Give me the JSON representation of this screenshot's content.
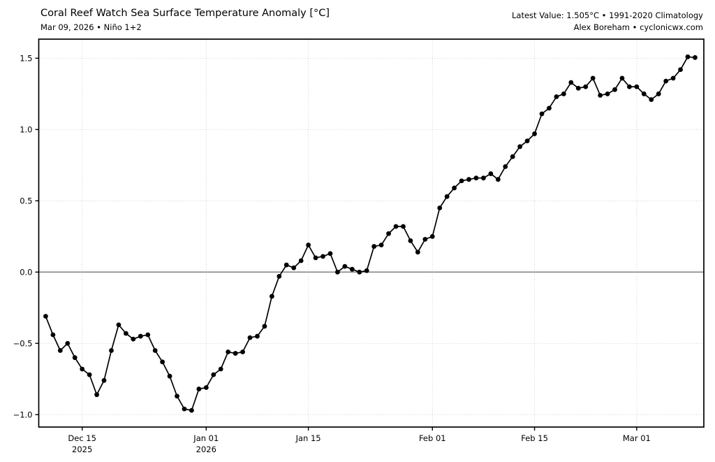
{
  "header": {
    "title": "Coral Reef Watch Sea Surface Temperature Anomaly [°C]",
    "subtitle": "Mar 09, 2026 • Niño 1+2",
    "latest_line": "Latest Value: 1.505°C • 1991-2020 Climatology",
    "credit_line": "Alex Boreham • cyclonicwx.com"
  },
  "colors": {
    "line": "#000000",
    "marker": "#000000",
    "grid": "#c9c9c9",
    "zero_line": "#808080",
    "spine": "#000000",
    "text": "#000000",
    "background": "#ffffff"
  },
  "chart_data": {
    "type": "line",
    "title": "Coral Reef Watch Sea Surface Temperature Anomaly [°C]",
    "subtitle": "Mar 09, 2026 • Niño 1+2",
    "ylabel": "",
    "xlabel": "",
    "marker": "circle",
    "grid": true,
    "zero_line": true,
    "ylim": [
      -1.087,
      1.634
    ],
    "xlim_days": [
      -0.95,
      90.2
    ],
    "yticks": [
      1.5,
      1.0,
      0.5,
      0.0,
      -0.5,
      -1.0
    ],
    "xticks": [
      {
        "day": 5,
        "label": "Dec 15",
        "label2": "2025"
      },
      {
        "day": 22,
        "label": "Jan 01",
        "label2": "2026"
      },
      {
        "day": 36,
        "label": "Jan 15",
        "label2": ""
      },
      {
        "day": 53,
        "label": "Feb 01",
        "label2": ""
      },
      {
        "day": 67,
        "label": "Feb 15",
        "label2": ""
      },
      {
        "day": 81,
        "label": "Mar 01",
        "label2": ""
      }
    ],
    "x": [
      "2025-12-10",
      "2025-12-11",
      "2025-12-12",
      "2025-12-13",
      "2025-12-14",
      "2025-12-15",
      "2025-12-16",
      "2025-12-17",
      "2025-12-18",
      "2025-12-19",
      "2025-12-20",
      "2025-12-21",
      "2025-12-22",
      "2025-12-23",
      "2025-12-24",
      "2025-12-25",
      "2025-12-26",
      "2025-12-27",
      "2025-12-28",
      "2025-12-29",
      "2025-12-30",
      "2025-12-31",
      "2026-01-01",
      "2026-01-02",
      "2026-01-03",
      "2026-01-04",
      "2026-01-05",
      "2026-01-06",
      "2026-01-07",
      "2026-01-08",
      "2026-01-09",
      "2026-01-10",
      "2026-01-11",
      "2026-01-12",
      "2026-01-13",
      "2026-01-14",
      "2026-01-15",
      "2026-01-16",
      "2026-01-17",
      "2026-01-18",
      "2026-01-19",
      "2026-01-20",
      "2026-01-21",
      "2026-01-22",
      "2026-01-23",
      "2026-01-24",
      "2026-01-25",
      "2026-01-26",
      "2026-01-27",
      "2026-01-28",
      "2026-01-29",
      "2026-01-30",
      "2026-01-31",
      "2026-02-01",
      "2026-02-02",
      "2026-02-03",
      "2026-02-04",
      "2026-02-05",
      "2026-02-06",
      "2026-02-07",
      "2026-02-08",
      "2026-02-09",
      "2026-02-10",
      "2026-02-11",
      "2026-02-12",
      "2026-02-13",
      "2026-02-14",
      "2026-02-15",
      "2026-02-16",
      "2026-02-17",
      "2026-02-18",
      "2026-02-19",
      "2026-02-20",
      "2026-02-21",
      "2026-02-22",
      "2026-02-23",
      "2026-02-24",
      "2026-02-25",
      "2026-02-26",
      "2026-02-27",
      "2026-02-28",
      "2026-03-01",
      "2026-03-02",
      "2026-03-03",
      "2026-03-04",
      "2026-03-05",
      "2026-03-06",
      "2026-03-07",
      "2026-03-08",
      "2026-03-09"
    ],
    "values": [
      -0.31,
      -0.44,
      -0.55,
      -0.5,
      -0.6,
      -0.68,
      -0.72,
      -0.86,
      -0.76,
      -0.55,
      -0.37,
      -0.43,
      -0.47,
      -0.45,
      -0.44,
      -0.55,
      -0.63,
      -0.73,
      -0.87,
      -0.96,
      -0.97,
      -0.82,
      -0.81,
      -0.72,
      -0.68,
      -0.56,
      -0.57,
      -0.56,
      -0.46,
      -0.45,
      -0.38,
      -0.17,
      -0.03,
      0.05,
      0.03,
      0.08,
      0.19,
      0.1,
      0.11,
      0.13,
      0.0,
      0.04,
      0.02,
      0.0,
      0.01,
      0.18,
      0.19,
      0.27,
      0.32,
      0.32,
      0.22,
      0.14,
      0.23,
      0.25,
      0.45,
      0.53,
      0.59,
      0.64,
      0.65,
      0.66,
      0.66,
      0.69,
      0.65,
      0.74,
      0.81,
      0.88,
      0.92,
      0.97,
      1.11,
      1.15,
      1.23,
      1.25,
      1.33,
      1.29,
      1.3,
      1.36,
      1.24,
      1.25,
      1.28,
      1.36,
      1.3,
      1.3,
      1.25,
      1.21,
      1.25,
      1.34,
      1.36,
      1.42,
      1.51,
      1.505
    ],
    "latest_value_label": "Latest Value: 1.505°C",
    "climatology_label": "1991-2020 Climatology",
    "legend_position": "none"
  }
}
